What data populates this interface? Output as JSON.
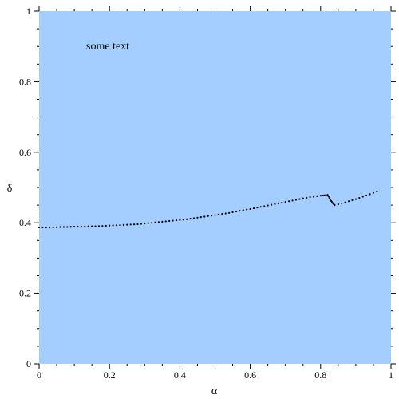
{
  "chart_data": {
    "type": "scatter",
    "xlabel": "α",
    "ylabel": "δ",
    "xlim": [
      0,
      1
    ],
    "ylim": [
      0,
      1
    ],
    "x_ticks": [
      0,
      0.2,
      0.4,
      0.6,
      0.8,
      1
    ],
    "y_ticks": [
      0,
      0.2,
      0.4,
      0.6,
      0.8,
      1
    ],
    "x_tick_labels": [
      "0",
      "0.2",
      "0.4",
      "0.6",
      "0.8",
      "1"
    ],
    "y_tick_labels": [
      "0",
      "0.2",
      "0.4",
      "0.6",
      "0.8",
      "1"
    ],
    "annotation": "some text",
    "background_color": "#a3ceff",
    "series": [
      {
        "color": "#000000",
        "x": [
          0.0,
          0.02,
          0.04,
          0.06,
          0.08,
          0.1,
          0.12,
          0.14,
          0.16,
          0.18,
          0.2,
          0.22,
          0.24,
          0.26,
          0.28,
          0.3,
          0.32,
          0.34,
          0.36,
          0.38,
          0.4,
          0.42,
          0.44,
          0.46,
          0.48,
          0.5,
          0.52,
          0.54,
          0.56,
          0.58,
          0.6,
          0.62,
          0.64,
          0.66,
          0.68,
          0.7,
          0.72,
          0.74,
          0.76,
          0.78,
          0.8,
          0.81,
          0.82,
          0.825,
          0.83,
          0.835,
          0.84,
          0.86,
          0.88,
          0.9,
          0.92,
          0.94,
          0.96
        ],
        "y": [
          0.387,
          0.387,
          0.387,
          0.388,
          0.388,
          0.389,
          0.389,
          0.39,
          0.39,
          0.391,
          0.392,
          0.393,
          0.394,
          0.395,
          0.396,
          0.398,
          0.4,
          0.402,
          0.404,
          0.406,
          0.408,
          0.41,
          0.413,
          0.416,
          0.419,
          0.422,
          0.425,
          0.428,
          0.432,
          0.436,
          0.439,
          0.443,
          0.447,
          0.451,
          0.455,
          0.459,
          0.463,
          0.467,
          0.471,
          0.474,
          0.477,
          0.478,
          0.479,
          0.47,
          0.462,
          0.455,
          0.45,
          0.455,
          0.461,
          0.467,
          0.474,
          0.481,
          0.489
        ]
      }
    ]
  }
}
